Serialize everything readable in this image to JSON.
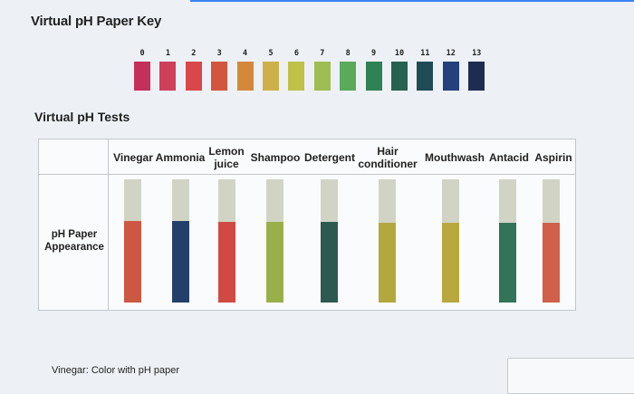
{
  "title": "Virtual pH Paper Key",
  "key": {
    "numbers": [
      "0",
      "1",
      "2",
      "3",
      "4",
      "5",
      "6",
      "7",
      "8",
      "9",
      "10",
      "11",
      "12",
      "13"
    ],
    "colors": [
      "#c42f5b",
      "#cf3f5a",
      "#d9474a",
      "#d2553e",
      "#d4893a",
      "#cdb04a",
      "#bfc247",
      "#9fbd53",
      "#5aaa5a",
      "#2f8253",
      "#27614f",
      "#1f4b56",
      "#24417b",
      "#1d2d52"
    ]
  },
  "subtitle": "Virtual pH Tests",
  "table": {
    "row_label": "pH Paper Appearance",
    "columns": [
      {
        "label": "Vinegar",
        "color": "#cc5843"
      },
      {
        "label": "Ammonia",
        "color": "#24406a"
      },
      {
        "label": "Lemon juice",
        "color": "#d04a43"
      },
      {
        "label": "Shampoo",
        "color": "#99b04a"
      },
      {
        "label": "Detergent",
        "color": "#2d5a50"
      },
      {
        "label": "Hair conditioner",
        "color": "#b2a83d"
      },
      {
        "label": "Mouthwash",
        "color": "#b8a83e"
      },
      {
        "label": "Antacid",
        "color": "#32745a"
      },
      {
        "label": "Aspirin",
        "color": "#d0604a"
      }
    ]
  },
  "caption": "Vinegar: Color with pH paper"
}
